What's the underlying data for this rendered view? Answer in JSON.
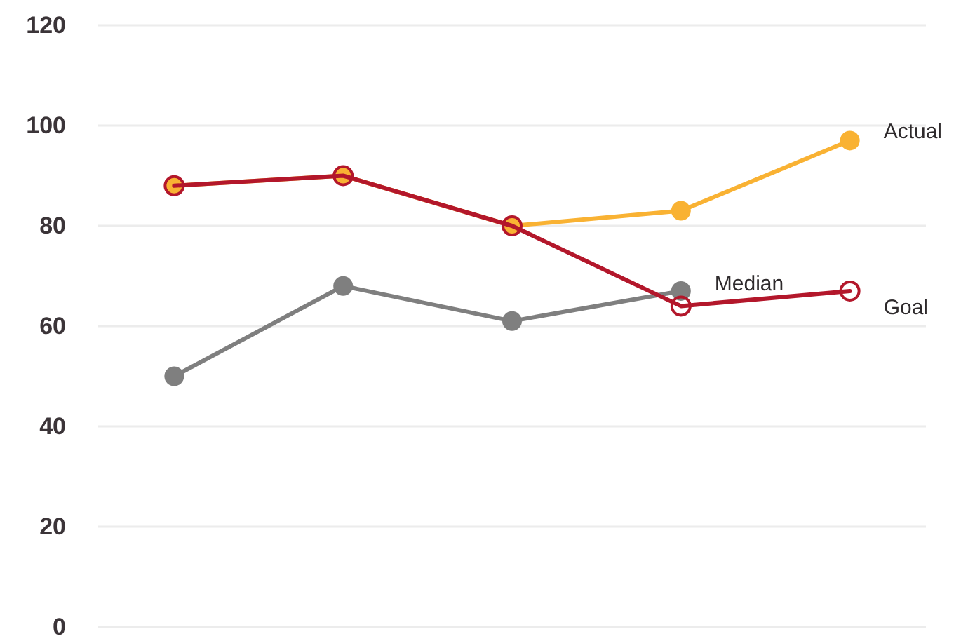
{
  "chart_data": {
    "type": "line",
    "categories": [
      null,
      null,
      null,
      null,
      null
    ],
    "series": [
      {
        "name": "Median",
        "color": "#7f7f7f",
        "values": [
          50,
          68,
          61,
          67,
          null
        ]
      },
      {
        "name": "Actual",
        "color": "#f9b233",
        "values": [
          88,
          90,
          80,
          83,
          97
        ]
      },
      {
        "name": "Goal",
        "color": "#b3172b",
        "values": [
          88,
          90,
          80,
          64,
          67
        ]
      }
    ],
    "ylim": [
      0,
      120
    ],
    "yticks": [
      0,
      20,
      40,
      60,
      80,
      100,
      120
    ],
    "grid": "y",
    "tick_labels": "y",
    "marker": "circle",
    "line_style": "solid"
  }
}
